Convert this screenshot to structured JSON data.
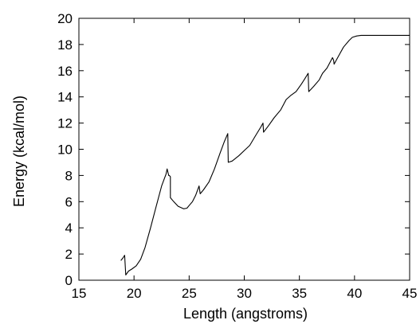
{
  "chart_data": {
    "type": "line",
    "xlabel": "Length (angstroms)",
    "ylabel": "Energy (kcal/mol)",
    "xlim": [
      15,
      45
    ],
    "ylim": [
      0,
      20
    ],
    "xticks": [
      15,
      20,
      25,
      30,
      35,
      40,
      45
    ],
    "yticks": [
      0,
      2,
      4,
      6,
      8,
      10,
      12,
      14,
      16,
      18,
      20
    ],
    "grid": false,
    "series": [
      {
        "color": "#000000",
        "x": [
          18.8,
          19.0,
          19.15,
          19.25,
          19.5,
          19.8,
          20.2,
          20.6,
          21.0,
          21.5,
          22.0,
          22.5,
          22.9,
          23.0,
          23.15,
          23.2,
          23.3,
          23.3,
          23.6,
          24.0,
          24.5,
          24.8,
          25.0,
          25.3,
          25.6,
          25.9,
          26.0,
          26.3,
          26.8,
          27.3,
          27.8,
          28.2,
          28.5,
          28.55,
          28.9,
          29.5,
          30.0,
          30.5,
          31.0,
          31.5,
          31.7,
          31.75,
          32.2,
          32.7,
          33.3,
          33.8,
          34.2,
          34.7,
          35.2,
          35.5,
          35.8,
          35.85,
          36.3,
          36.8,
          37.1,
          37.5,
          38.0,
          38.1,
          38.15,
          38.6,
          39.0,
          39.5,
          39.8,
          40.2,
          40.6,
          41.0,
          41.5,
          42.0,
          43.0,
          44.0,
          45.0
        ],
        "y": [
          1.5,
          1.7,
          1.9,
          0.4,
          0.7,
          0.85,
          1.1,
          1.6,
          2.5,
          4.0,
          5.6,
          7.2,
          8.1,
          8.5,
          8.0,
          8.0,
          7.9,
          6.3,
          6.0,
          5.65,
          5.45,
          5.5,
          5.7,
          6.0,
          6.5,
          7.2,
          6.6,
          6.9,
          7.5,
          8.5,
          9.7,
          10.6,
          11.2,
          9.0,
          9.1,
          9.5,
          9.9,
          10.3,
          11.0,
          11.7,
          12.0,
          11.3,
          11.8,
          12.4,
          13.0,
          13.8,
          14.1,
          14.4,
          15.0,
          15.4,
          15.8,
          14.4,
          14.8,
          15.3,
          15.8,
          16.2,
          17.0,
          16.8,
          16.5,
          17.2,
          17.8,
          18.3,
          18.55,
          18.65,
          18.7,
          18.7,
          18.7,
          18.7,
          18.7,
          18.7,
          18.7
        ]
      }
    ]
  }
}
